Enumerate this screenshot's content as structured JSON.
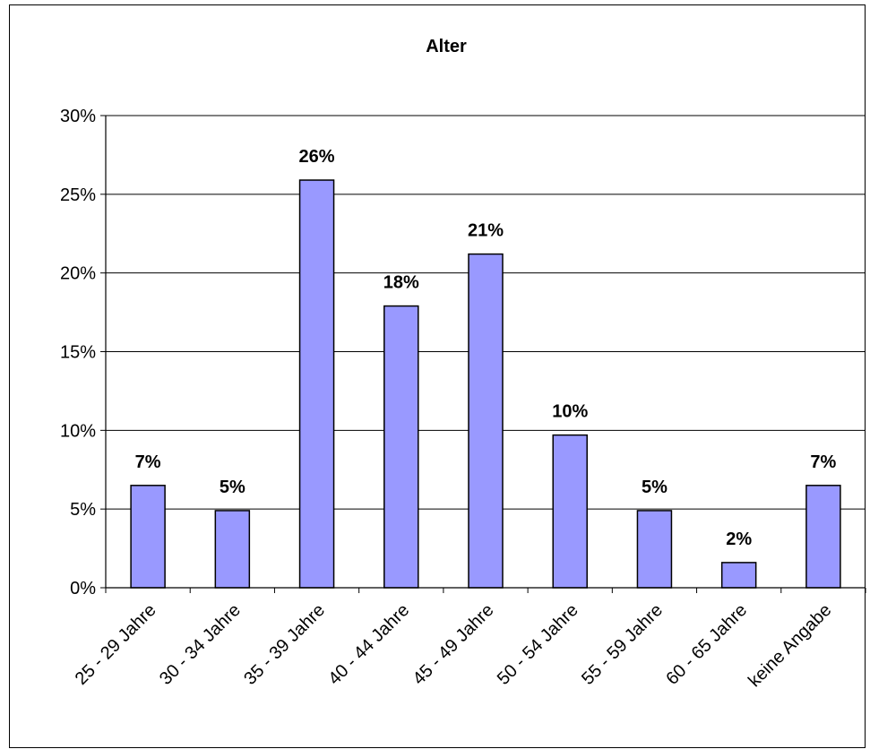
{
  "chart_data": {
    "type": "bar",
    "title": "Alter",
    "xlabel": "",
    "ylabel": "",
    "categories": [
      "25 - 29 Jahre",
      "30 - 34 Jahre",
      "35 - 39 Jahre",
      "40 - 44 Jahre",
      "45 - 49 Jahre",
      "50 - 54 Jahre",
      "55 - 59 Jahre",
      "60 - 65 Jahre",
      "keine Angabe"
    ],
    "values": [
      6.5,
      4.9,
      25.9,
      17.9,
      21.2,
      9.7,
      4.9,
      1.6,
      6.5
    ],
    "data_labels": [
      "7%",
      "5%",
      "26%",
      "18%",
      "21%",
      "10%",
      "5%",
      "2%",
      "7%"
    ],
    "ylim": [
      0,
      30
    ],
    "y_ticks": [
      0,
      5,
      10,
      15,
      20,
      25,
      30
    ],
    "y_tick_labels": [
      "0%",
      "5%",
      "10%",
      "15%",
      "20%",
      "25%",
      "30%"
    ],
    "grid": true,
    "legend": "none",
    "colors": {
      "bar_fill": "#9999ff",
      "bar_stroke": "#000000",
      "grid": "#000000"
    }
  }
}
